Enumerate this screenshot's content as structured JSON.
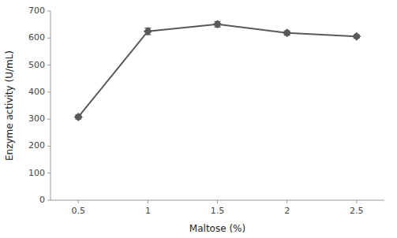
{
  "chart_data": {
    "type": "line",
    "x": [
      0.5,
      1.0,
      1.5,
      2.0,
      2.5
    ],
    "values": [
      308,
      625,
      651,
      619,
      606
    ],
    "yerr": [
      8,
      12,
      10,
      8,
      6
    ],
    "xlabel": "Maltose (%)",
    "ylabel": "Enzyme activity (U/mL)",
    "xlim": [
      0.3,
      2.7
    ],
    "xticks": [
      0.5,
      1,
      1.5,
      2,
      2.5
    ],
    "ylim": [
      0,
      700
    ],
    "yticks": [
      0,
      100,
      200,
      300,
      400,
      500,
      600,
      700
    ],
    "color": "#595959",
    "marker": "diamond",
    "line_style": "solid",
    "grid": false
  }
}
